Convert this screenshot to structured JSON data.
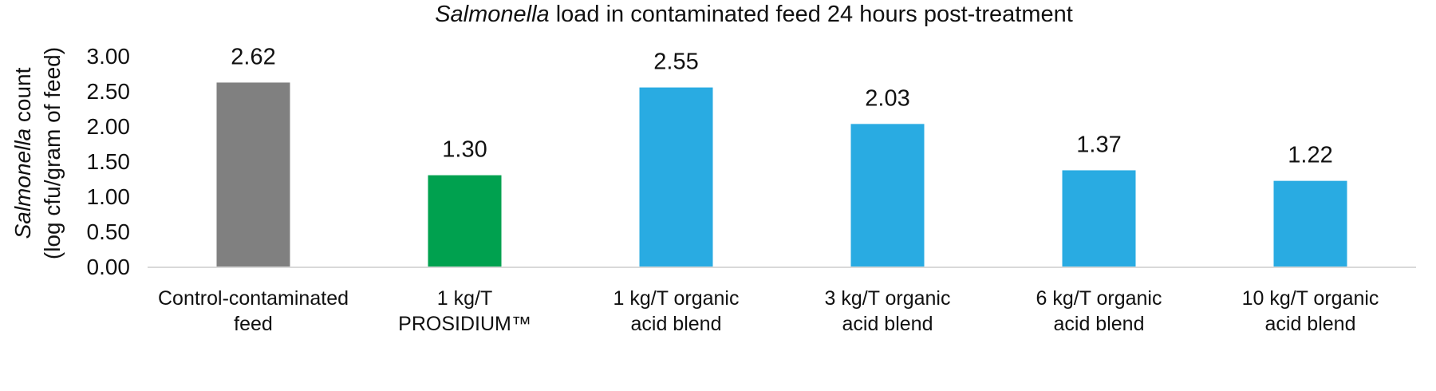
{
  "chart_data": {
    "type": "bar",
    "title_parts": [
      "Salmonella",
      " load in contaminated feed 24 hours post-treatment"
    ],
    "ylabel_line1_parts": [
      "Salmonella",
      " count"
    ],
    "ylabel_line2": "(log cfu/gram of feed)",
    "xlabel": "",
    "ylim": [
      0,
      3
    ],
    "yticks": [
      "0.00",
      "0.50",
      "1.00",
      "1.50",
      "2.00",
      "2.50",
      "3.00"
    ],
    "grid": false,
    "categories": [
      [
        "Control-contaminated",
        "feed"
      ],
      [
        "1 kg/T",
        "PROSIDIUM™"
      ],
      [
        "1 kg/T organic",
        "acid blend"
      ],
      [
        "3 kg/T organic",
        "acid blend"
      ],
      [
        "6 kg/T organic",
        "acid blend"
      ],
      [
        "10 kg/T organic",
        "acid blend"
      ]
    ],
    "values": [
      2.62,
      1.3,
      2.55,
      2.03,
      1.37,
      1.22
    ],
    "data_labels": [
      "2.62",
      "1.30",
      "2.55",
      "2.03",
      "1.37",
      "1.22"
    ],
    "bar_colors": [
      "#808080",
      "#00A14F",
      "#29ABE2",
      "#29ABE2",
      "#29ABE2",
      "#29ABE2"
    ],
    "axis_color": "#D9D9D9"
  }
}
